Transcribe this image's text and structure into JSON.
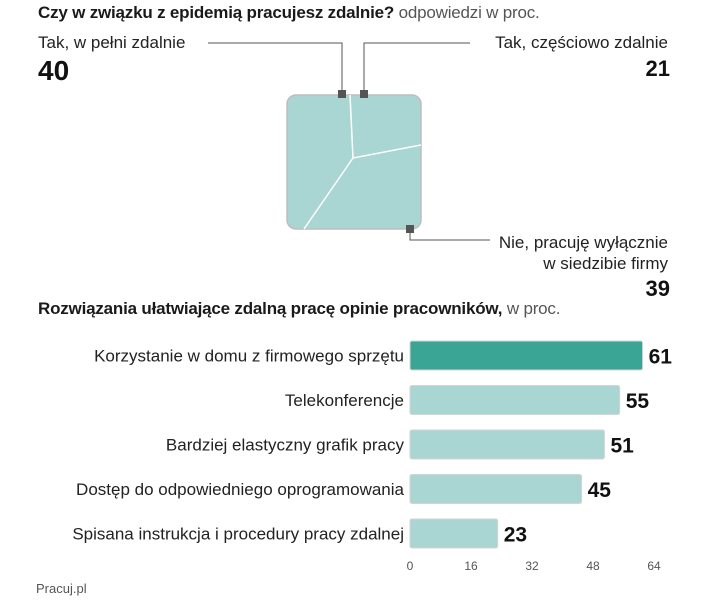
{
  "chart_data": [
    {
      "type": "pie",
      "title": "Czy w związku z epidemią pracujesz zdalnie?",
      "unit": "odpowiedzi w proc.",
      "slices": [
        {
          "label": "Tak, w pełni zdalnie",
          "value": 40
        },
        {
          "label": "Tak, częściowo zdalnie",
          "value": 21
        },
        {
          "label_line1": "Nie, pracuję wyłącznie",
          "label_line2": "w siedzibie firmy",
          "value": 39
        }
      ],
      "colors": {
        "fill": "#a9d6d3",
        "border": "#bdbdbd",
        "divider": "#ffffff",
        "marker": "#555555"
      }
    },
    {
      "type": "bar",
      "orientation": "horizontal",
      "title": "Rozwiązania ułatwiające zdalną pracę opinie pracowników,",
      "unit": "w proc.",
      "categories": [
        "Korzystanie w domu z firmowego sprzętu",
        "Telekonferencje",
        "Bardziej elastyczny grafik pracy",
        "Dostęp do odpowiedniego oprogramowania",
        "Spisana instrukcja i procedury pracy zdalnej"
      ],
      "values": [
        61,
        55,
        51,
        45,
        23
      ],
      "highlight_index": 0,
      "xlim": [
        0,
        64
      ],
      "xticks": [
        0,
        16,
        32,
        48,
        64
      ],
      "colors": {
        "highlight": "#3aa594",
        "bar": "#a9d6d3",
        "bar_border": "#d4d4d4",
        "value": "#111111"
      }
    }
  ],
  "source": "Pracuj.pl"
}
